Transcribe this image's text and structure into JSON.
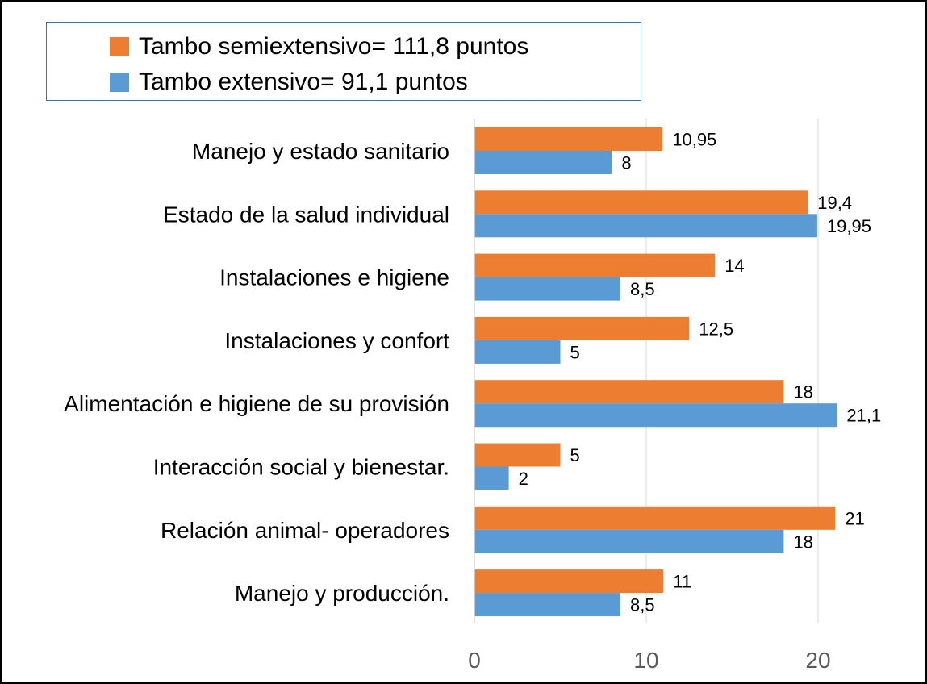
{
  "chart_data": {
    "type": "bar",
    "orientation": "horizontal",
    "categories": [
      "Manejo y estado sanitario",
      "Estado de la salud individual",
      "Instalaciones e higiene",
      "Instalaciones y confort",
      "Alimentación e higiene de su provisión",
      "Interacción social y bienestar.",
      "Relación animal- operadores",
      "Manejo y producción."
    ],
    "series": [
      {
        "name": "Tambo semiextensivo= 111,8 puntos",
        "color": "#ed7d31",
        "values": [
          10.95,
          19.4,
          14,
          12.5,
          18,
          5,
          21,
          11
        ],
        "labels": [
          "10,95",
          "19,4",
          "14",
          "12,5",
          "18",
          "5",
          "21",
          "11"
        ]
      },
      {
        "name": "Tambo extensivo= 91,1 puntos",
        "color": "#5b9bd5",
        "values": [
          8,
          19.95,
          8.5,
          5,
          21.1,
          2,
          18,
          8.5
        ],
        "labels": [
          "8",
          "19,95",
          "8,5",
          "5",
          "21,1",
          "2",
          "18",
          "8,5"
        ]
      }
    ],
    "xlim": [
      0,
      25
    ],
    "xticks": [
      "0",
      "10",
      "20"
    ],
    "xlabel": "",
    "ylabel": "",
    "grid": "vertical",
    "legend_position": "top"
  }
}
